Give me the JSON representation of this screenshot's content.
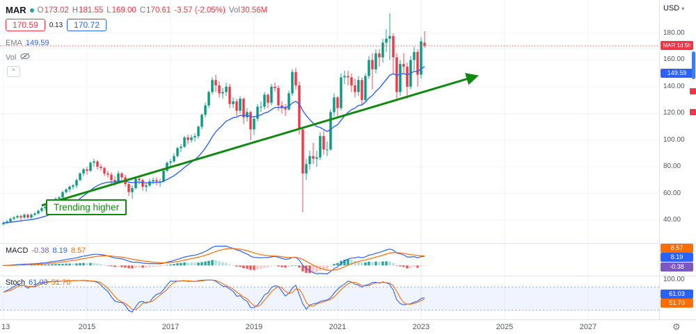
{
  "header": {
    "symbol": "MAR",
    "status_dot_color": "#26a69a",
    "ohlc": {
      "o_label": "O",
      "o": "173.02",
      "h_label": "H",
      "h": "181.55",
      "l_label": "L",
      "l": "169.00",
      "c_label": "C",
      "c": "170.61",
      "change": "-3.57 (-2.05%)"
    },
    "vol_label": "Vol",
    "vol_value": "30.56M",
    "bid": "170.59",
    "spread": "0.13",
    "ask": "170.72",
    "ema_label": "EMA",
    "ema_value": "149.59",
    "vol_row_label": "Vol",
    "collapse_glyph": "^"
  },
  "axis": {
    "currency": "USD",
    "price_ticks": [
      "180.00",
      "160.00",
      "140.00",
      "120.00",
      "100.00",
      "80.00",
      "60.00",
      "40.00"
    ],
    "time_ticks": [
      "13",
      "2015",
      "2017",
      "2019",
      "2021",
      "2023",
      "2025",
      "2027"
    ],
    "last_price_badge": "MAR 1d 5h",
    "ema_badge": "149.59",
    "stoch_top_label": "100.00"
  },
  "macd": {
    "label": "MACD",
    "hist_value": "-0.38",
    "macd_value": "8.19",
    "signal_value": "8.57",
    "badges": [
      "8.57",
      "8.19",
      "-0.38"
    ]
  },
  "stoch": {
    "label": "Stoch",
    "k_value": "61.03",
    "d_value": "51.70",
    "badges": [
      "61.03",
      "51.70"
    ]
  },
  "chart_data": {
    "type": "candlestick",
    "symbol": "MAR",
    "frequency": "monthly",
    "start": "2013-01",
    "title": "MAR monthly candlestick chart with EMA, MACD and Stochastic",
    "y_axis": {
      "min": 40,
      "max": 180,
      "step": 20,
      "currency": "USD"
    },
    "x_axis_years": [
      2013,
      2015,
      2017,
      2019,
      2021,
      2023,
      2025,
      2027
    ],
    "last_price": 170.61,
    "last_candle": {
      "open": 173.02,
      "high": 181.55,
      "low": 169.0,
      "close": 170.61,
      "change": -3.57,
      "change_pct": -2.05,
      "volume": "30.56M"
    },
    "overlays": [
      {
        "name": "EMA",
        "length": 20,
        "last_value": 149.59
      }
    ],
    "panes": [
      {
        "name": "MACD",
        "hist": -0.38,
        "macd": 8.19,
        "signal": 8.57
      },
      {
        "name": "Stoch",
        "k": 61.03,
        "d": 51.7,
        "band": [
          20,
          80
        ],
        "scale": [
          0,
          100
        ]
      }
    ],
    "trend": {
      "label": "Trending higher",
      "from_month": 11,
      "from_price": 51,
      "to_month": 136,
      "to_price": 148
    },
    "candles_ohlc": [
      [
        37,
        39,
        36,
        38
      ],
      [
        38,
        40,
        37,
        39
      ],
      [
        39,
        42,
        38,
        41
      ],
      [
        41,
        43,
        40,
        42
      ],
      [
        42,
        44,
        41,
        43
      ],
      [
        43,
        44,
        40,
        42
      ],
      [
        42,
        45,
        41,
        44
      ],
      [
        44,
        45,
        41,
        42
      ],
      [
        42,
        45,
        41,
        44
      ],
      [
        44,
        46,
        43,
        45
      ],
      [
        45,
        48,
        44,
        47
      ],
      [
        47,
        50,
        46,
        49
      ],
      [
        49,
        51,
        47,
        50
      ],
      [
        50,
        53,
        49,
        52
      ],
      [
        52,
        55,
        51,
        54
      ],
      [
        54,
        57,
        53,
        56
      ],
      [
        56,
        58,
        54,
        57
      ],
      [
        57,
        62,
        56,
        61
      ],
      [
        61,
        64,
        60,
        63
      ],
      [
        63,
        66,
        61,
        65
      ],
      [
        65,
        67,
        63,
        66
      ],
      [
        66,
        71,
        64,
        70
      ],
      [
        70,
        76,
        69,
        75
      ],
      [
        75,
        79,
        73,
        78
      ],
      [
        78,
        80,
        74,
        77
      ],
      [
        77,
        84,
        76,
        83
      ],
      [
        83,
        86,
        80,
        84
      ],
      [
        84,
        85,
        78,
        80
      ],
      [
        80,
        82,
        77,
        79
      ],
      [
        79,
        80,
        73,
        75
      ],
      [
        75,
        77,
        72,
        74
      ],
      [
        74,
        76,
        67,
        70
      ],
      [
        70,
        73,
        66,
        69
      ],
      [
        69,
        77,
        68,
        75
      ],
      [
        75,
        76,
        70,
        72
      ],
      [
        72,
        74,
        65,
        67
      ],
      [
        67,
        68,
        58,
        61
      ],
      [
        61,
        66,
        56,
        64
      ],
      [
        64,
        72,
        63,
        71
      ],
      [
        71,
        73,
        67,
        70
      ],
      [
        70,
        71,
        62,
        65
      ],
      [
        65,
        68,
        61,
        66
      ],
      [
        66,
        71,
        65,
        69
      ],
      [
        69,
        72,
        67,
        70
      ],
      [
        70,
        72,
        66,
        69
      ],
      [
        69,
        71,
        65,
        69
      ],
      [
        69,
        78,
        68,
        77
      ],
      [
        77,
        84,
        76,
        83
      ],
      [
        83,
        86,
        80,
        84
      ],
      [
        84,
        90,
        83,
        88
      ],
      [
        88,
        95,
        87,
        94
      ],
      [
        94,
        97,
        91,
        95
      ],
      [
        95,
        103,
        94,
        102
      ],
      [
        102,
        104,
        97,
        100
      ],
      [
        100,
        104,
        98,
        102
      ],
      [
        102,
        105,
        99,
        103
      ],
      [
        103,
        111,
        101,
        110
      ],
      [
        110,
        120,
        108,
        119
      ],
      [
        119,
        128,
        117,
        126
      ],
      [
        126,
        137,
        124,
        136
      ],
      [
        136,
        147,
        134,
        145
      ],
      [
        145,
        149,
        136,
        141
      ],
      [
        141,
        144,
        132,
        135
      ],
      [
        135,
        139,
        131,
        136
      ],
      [
        136,
        143,
        133,
        140
      ],
      [
        140,
        142,
        124,
        127
      ],
      [
        127,
        132,
        124,
        129
      ],
      [
        129,
        131,
        118,
        122
      ],
      [
        122,
        133,
        120,
        131
      ],
      [
        131,
        132,
        112,
        117
      ],
      [
        117,
        124,
        114,
        121
      ],
      [
        121,
        122,
        100,
        108
      ],
      [
        108,
        118,
        104,
        116
      ],
      [
        116,
        127,
        114,
        125
      ],
      [
        125,
        129,
        121,
        125
      ],
      [
        125,
        136,
        123,
        134
      ],
      [
        134,
        135,
        124,
        128
      ],
      [
        128,
        142,
        126,
        140
      ],
      [
        140,
        143,
        136,
        139
      ],
      [
        139,
        141,
        122,
        126
      ],
      [
        126,
        129,
        120,
        124
      ],
      [
        124,
        127,
        118,
        123
      ],
      [
        123,
        137,
        122,
        135
      ],
      [
        135,
        153,
        133,
        151
      ],
      [
        151,
        154,
        138,
        141
      ],
      [
        141,
        144,
        104,
        108
      ],
      [
        108,
        110,
        46,
        75
      ],
      [
        75,
        86,
        70,
        82
      ],
      [
        82,
        92,
        78,
        88
      ],
      [
        88,
        98,
        82,
        86
      ],
      [
        86,
        92,
        80,
        87
      ],
      [
        87,
        106,
        85,
        103
      ],
      [
        103,
        107,
        89,
        93
      ],
      [
        93,
        99,
        88,
        93
      ],
      [
        93,
        123,
        92,
        121
      ],
      [
        121,
        135,
        118,
        132
      ],
      [
        132,
        133,
        118,
        124
      ],
      [
        124,
        150,
        122,
        147
      ],
      [
        147,
        152,
        142,
        148
      ],
      [
        148,
        152,
        141,
        147
      ],
      [
        147,
        150,
        136,
        141
      ],
      [
        141,
        146,
        132,
        136
      ],
      [
        136,
        148,
        133,
        145
      ],
      [
        145,
        147,
        126,
        130
      ],
      [
        130,
        150,
        128,
        148
      ],
      [
        148,
        163,
        146,
        160
      ],
      [
        160,
        165,
        138,
        153
      ],
      [
        153,
        168,
        150,
        165
      ],
      [
        165,
        168,
        155,
        162
      ],
      [
        162,
        176,
        158,
        173
      ],
      [
        173,
        183,
        166,
        176
      ],
      [
        176,
        195,
        160,
        178
      ],
      [
        178,
        180,
        150,
        162
      ],
      [
        162,
        165,
        131,
        136
      ],
      [
        136,
        160,
        133,
        157
      ],
      [
        157,
        165,
        150,
        155
      ],
      [
        155,
        158,
        131,
        140
      ],
      [
        140,
        163,
        138,
        160
      ],
      [
        160,
        170,
        152,
        166
      ],
      [
        166,
        168,
        140,
        149
      ],
      [
        149,
        177,
        146,
        174
      ],
      [
        173.02,
        181.55,
        169,
        170.61
      ]
    ],
    "colors": {
      "up": "#089981",
      "down": "#f23645",
      "ema": "#2962ff",
      "macd_line": "#2962ff",
      "signal_line": "#ff6d00",
      "hist_pos": "#26a69a",
      "hist_pos_weak": "#b2dfdb",
      "hist_neg": "#ef5350",
      "hist_neg_weak": "#f5c6c8",
      "stoch_k": "#2962ff",
      "stoch_d": "#ff6d00",
      "trend": "#0f8a0f",
      "last_price_line": "#f23645",
      "band_fill": "rgba(41,98,255,0.07)",
      "band_edge": "#5b8def",
      "grid": "#f0f3fa",
      "separator": "#e0e3eb"
    }
  }
}
